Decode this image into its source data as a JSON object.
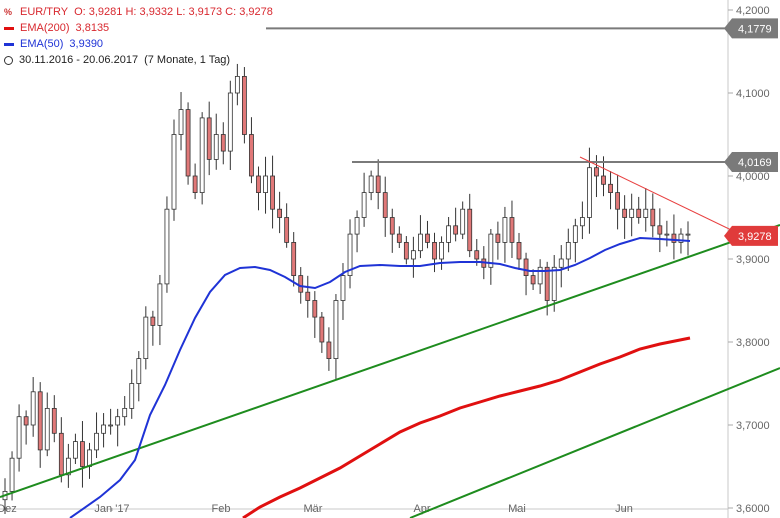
{
  "header": {
    "symbol": "EUR/TRY",
    "ohlc": "O: 3,9281  H: 3,9332  L: 3,9173  C: 3,9278",
    "ema200_label": "EMA(200)",
    "ema200_value": "3,8135",
    "ema50_label": "EMA(50)",
    "ema50_value": "3,9390",
    "period": "30.11.2016 - 20.06.2017",
    "period_detail": "(7 Monate, 1 Tag)",
    "icons": [
      "chart-symbol-icon",
      "clock-icon"
    ]
  },
  "colors": {
    "up_candle": "#ffffff",
    "down_candle": "#e07878",
    "ema200": "#e01010",
    "ema50": "#1f33d6",
    "trendline": "#1e8c1e",
    "resistance": "#7a7a7a",
    "downtrend": "#e84040",
    "price_tag": "#e03b3b"
  },
  "chart_data": {
    "type": "candlestick",
    "x_labels": [
      "Dez",
      "Jan '17",
      "Feb",
      "Mär",
      "Apr",
      "Mai",
      "Jun"
    ],
    "y_ticks": [
      3.6,
      3.7,
      3.8,
      3.9,
      4.0,
      4.1,
      4.2
    ],
    "y_tick_labels": [
      "3,6000",
      "3,7000",
      "3,8000",
      "3,9000",
      "4,0000",
      "4,1000",
      "4,2000"
    ],
    "ylim": [
      3.6,
      4.2
    ],
    "price_markers": [
      {
        "label": "4,1779",
        "value": 4.1779,
        "kind": "resistance"
      },
      {
        "label": "4,0169",
        "value": 4.0169,
        "kind": "resistance"
      },
      {
        "label": "3,9278",
        "value": 3.9278,
        "kind": "last"
      }
    ],
    "close_series": [
      3.62,
      3.66,
      3.71,
      3.7,
      3.74,
      3.67,
      3.72,
      3.69,
      3.64,
      3.66,
      3.68,
      3.65,
      3.67,
      3.69,
      3.7,
      3.7,
      3.71,
      3.72,
      3.75,
      3.78,
      3.83,
      3.82,
      3.87,
      3.96,
      4.05,
      4.08,
      4.0,
      3.98,
      4.07,
      4.02,
      4.05,
      4.03,
      4.1,
      4.12,
      4.05,
      4.0,
      3.98,
      4.0,
      3.96,
      3.95,
      3.92,
      3.88,
      3.86,
      3.85,
      3.83,
      3.8,
      3.78,
      3.85,
      3.88,
      3.93,
      3.95,
      3.98,
      4.0,
      3.98,
      3.95,
      3.93,
      3.92,
      3.9,
      3.91,
      3.93,
      3.92,
      3.9,
      3.92,
      3.94,
      3.93,
      3.96,
      3.91,
      3.9,
      3.89,
      3.93,
      3.92,
      3.95,
      3.92,
      3.9,
      3.88,
      3.87,
      3.89,
      3.85,
      3.89,
      3.9,
      3.92,
      3.94,
      3.95,
      4.01,
      4.0,
      3.99,
      3.98,
      3.96,
      3.95,
      3.96,
      3.95,
      3.96,
      3.94,
      3.93,
      3.93,
      3.92,
      3.93,
      3.93
    ]
  }
}
